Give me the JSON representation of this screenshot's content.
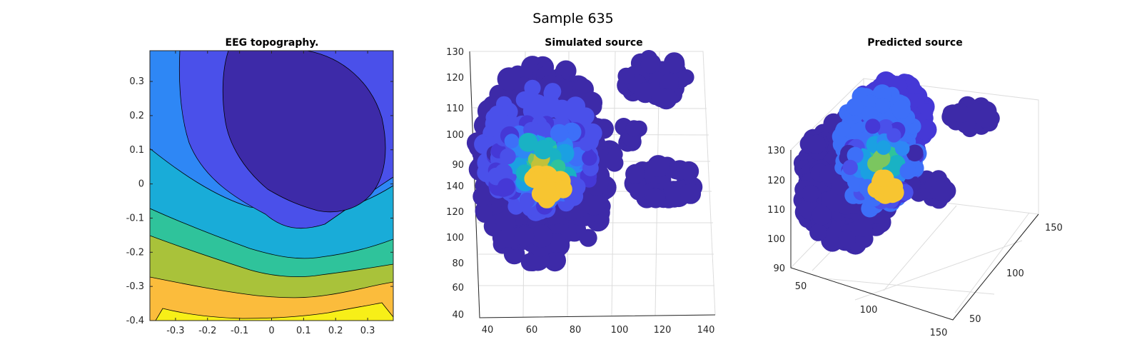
{
  "figure": {
    "title": "Sample 635"
  },
  "chart_data": [
    {
      "type": "heatmap",
      "subtype": "filled-contour",
      "title": "EEG topography.",
      "xlabel": "",
      "ylabel": "",
      "xlim": [
        -0.38,
        0.38
      ],
      "ylim": [
        -0.4,
        0.39
      ],
      "xticks": [
        -0.3,
        -0.2,
        -0.1,
        0,
        0.1,
        0.2,
        0.3
      ],
      "xtick_labels": [
        "-0.3",
        "-0.2",
        "-0.1",
        "0",
        "0.1",
        "0.2",
        "0.3"
      ],
      "yticks": [
        -0.4,
        -0.3,
        -0.2,
        -0.1,
        0,
        0.1,
        0.2,
        0.3
      ],
      "ytick_labels": [
        "-0.4",
        "-0.3",
        "-0.2",
        "-0.1",
        "0",
        "0.1",
        "0.2",
        "0.3"
      ],
      "levels": 8,
      "colormap": [
        "#3d2aa8",
        "#4a50ea",
        "#2e87f5",
        "#19acd8",
        "#2fc39b",
        "#a9c23a",
        "#fbbc3c",
        "#f7ef18"
      ],
      "contour_color": "#000000"
    },
    {
      "type": "scatter",
      "subtype": "3d-scatter",
      "title": "Simulated source",
      "xlabel": "",
      "ylabel": "",
      "zlabel": "",
      "xticks": [
        40,
        60,
        80,
        100,
        120,
        140
      ],
      "yticks": [
        40,
        60,
        80,
        100,
        120,
        140
      ],
      "zticks": [
        90,
        100,
        110,
        120,
        130
      ],
      "xlim": [
        35,
        140
      ],
      "ylim": [
        40,
        145
      ],
      "zlim": [
        85,
        130
      ],
      "colormap": "parula",
      "peak_color": "#f7c531",
      "grid": true
    },
    {
      "type": "scatter",
      "subtype": "3d-scatter",
      "title": "Predicted source",
      "xlabel": "",
      "ylabel": "",
      "zlabel": "",
      "xticks": [
        50,
        100,
        150
      ],
      "yticks": [
        50,
        100,
        150
      ],
      "zticks": [
        90,
        100,
        110,
        120,
        130
      ],
      "xlim": [
        30,
        160
      ],
      "ylim": [
        30,
        160
      ],
      "zlim": [
        90,
        130
      ],
      "colormap": "parula",
      "peak_color": "#f7c531",
      "grid": true
    }
  ]
}
